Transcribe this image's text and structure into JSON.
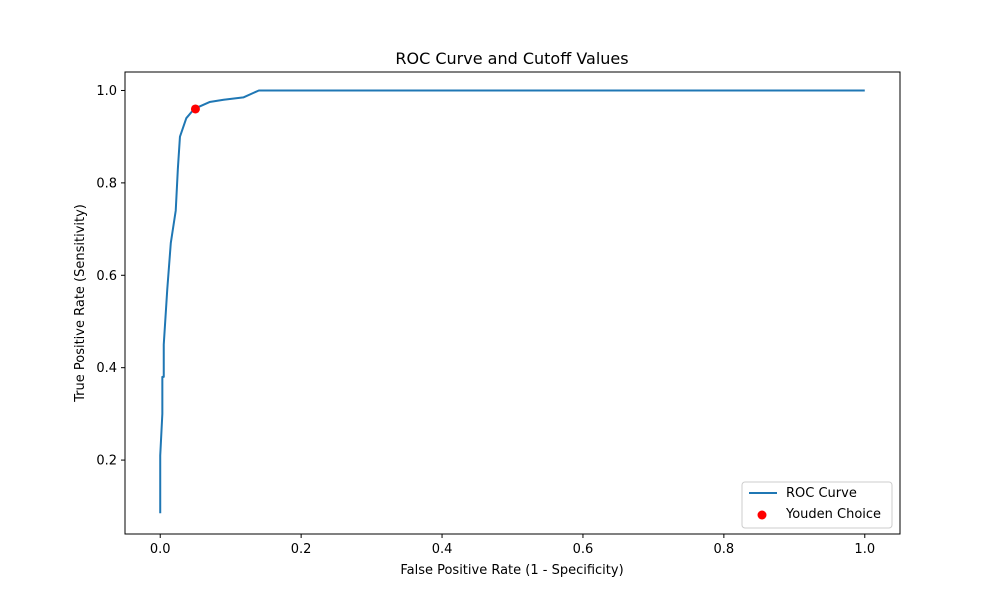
{
  "chart_data": {
    "type": "line",
    "title": "ROC Curve and Cutoff Values",
    "xlabel": "False Positive Rate (1 - Specificity)",
    "ylabel": "True Positive Rate (Sensitivity)",
    "xlim": [
      -0.05,
      1.05
    ],
    "ylim": [
      0.04,
      1.04
    ],
    "xticks": [
      0.0,
      0.2,
      0.4,
      0.6,
      0.8,
      1.0
    ],
    "xtick_labels": [
      "0.0",
      "0.2",
      "0.4",
      "0.6",
      "0.8",
      "1.0"
    ],
    "yticks": [
      0.2,
      0.4,
      0.6,
      0.8,
      1.0
    ],
    "ytick_labels": [
      "0.2",
      "0.4",
      "0.6",
      "0.8",
      "1.0"
    ],
    "grid": false,
    "legend_position": "bottom-right",
    "series": [
      {
        "name": "ROC Curve",
        "color": "#1f77b4",
        "x": [
          0.0,
          0.0,
          0.0,
          0.003,
          0.003,
          0.005,
          0.005,
          0.01,
          0.015,
          0.022,
          0.025,
          0.028,
          0.037,
          0.048,
          0.07,
          0.09,
          0.118,
          0.14,
          0.5,
          1.0
        ],
        "y": [
          0.085,
          0.21,
          0.21,
          0.3,
          0.38,
          0.38,
          0.45,
          0.57,
          0.67,
          0.74,
          0.83,
          0.9,
          0.94,
          0.96,
          0.975,
          0.98,
          0.985,
          1.0,
          1.0,
          1.0
        ]
      }
    ],
    "markers": [
      {
        "name": "Youden Choice",
        "color": "#ff0000",
        "x": 0.05,
        "y": 0.96
      }
    ]
  }
}
